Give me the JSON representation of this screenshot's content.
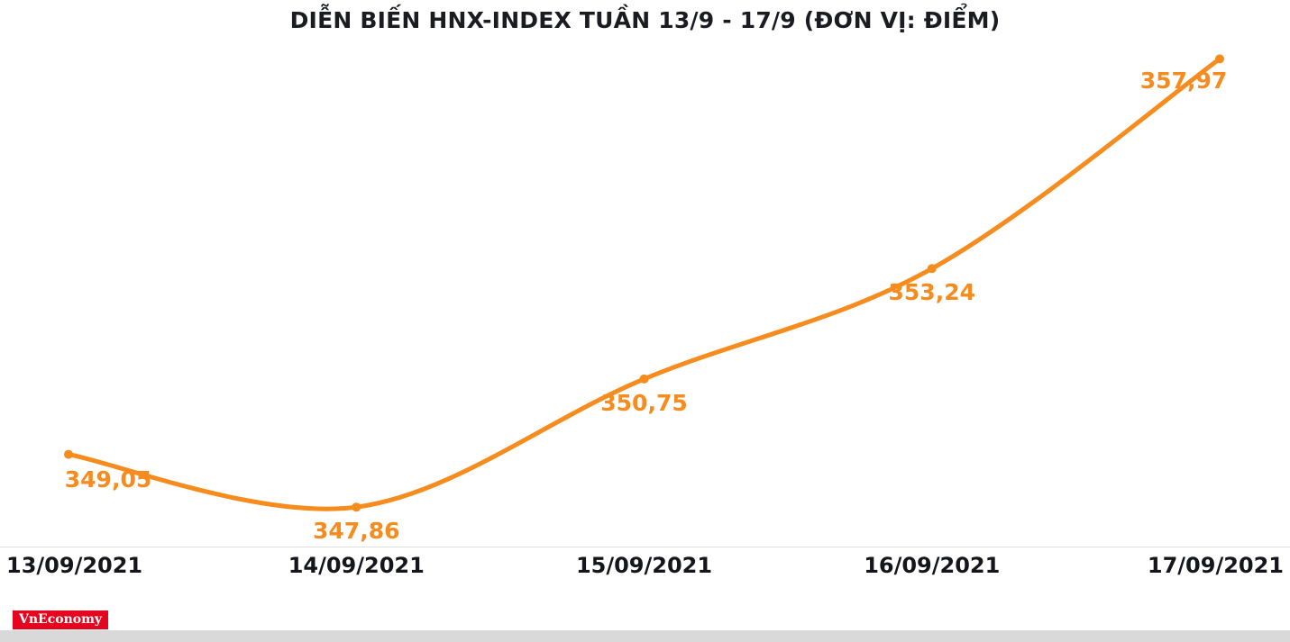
{
  "chart_data": {
    "type": "line",
    "title": "DIỄN BIẾN HNX-INDEX TUẦN 13/9 - 17/9 (ĐƠN VỊ: ĐIỂM)",
    "categories": [
      "13/09/2021",
      "14/09/2021",
      "15/09/2021",
      "16/09/2021",
      "17/09/2021"
    ],
    "values": [
      349.05,
      347.86,
      350.75,
      353.24,
      357.97
    ],
    "value_labels": [
      "349,05",
      "347,86",
      "350,75",
      "353,24",
      "357,97"
    ],
    "series_name": "HNX-Index",
    "series_color": "#f68b1e",
    "xlabel": "",
    "ylabel": "",
    "ylim": [
      347.6,
      358.1
    ],
    "grid": false,
    "legend": false
  },
  "footer": {
    "logo_text": "VnEconomy",
    "logo_bg": "#e4051f"
  }
}
